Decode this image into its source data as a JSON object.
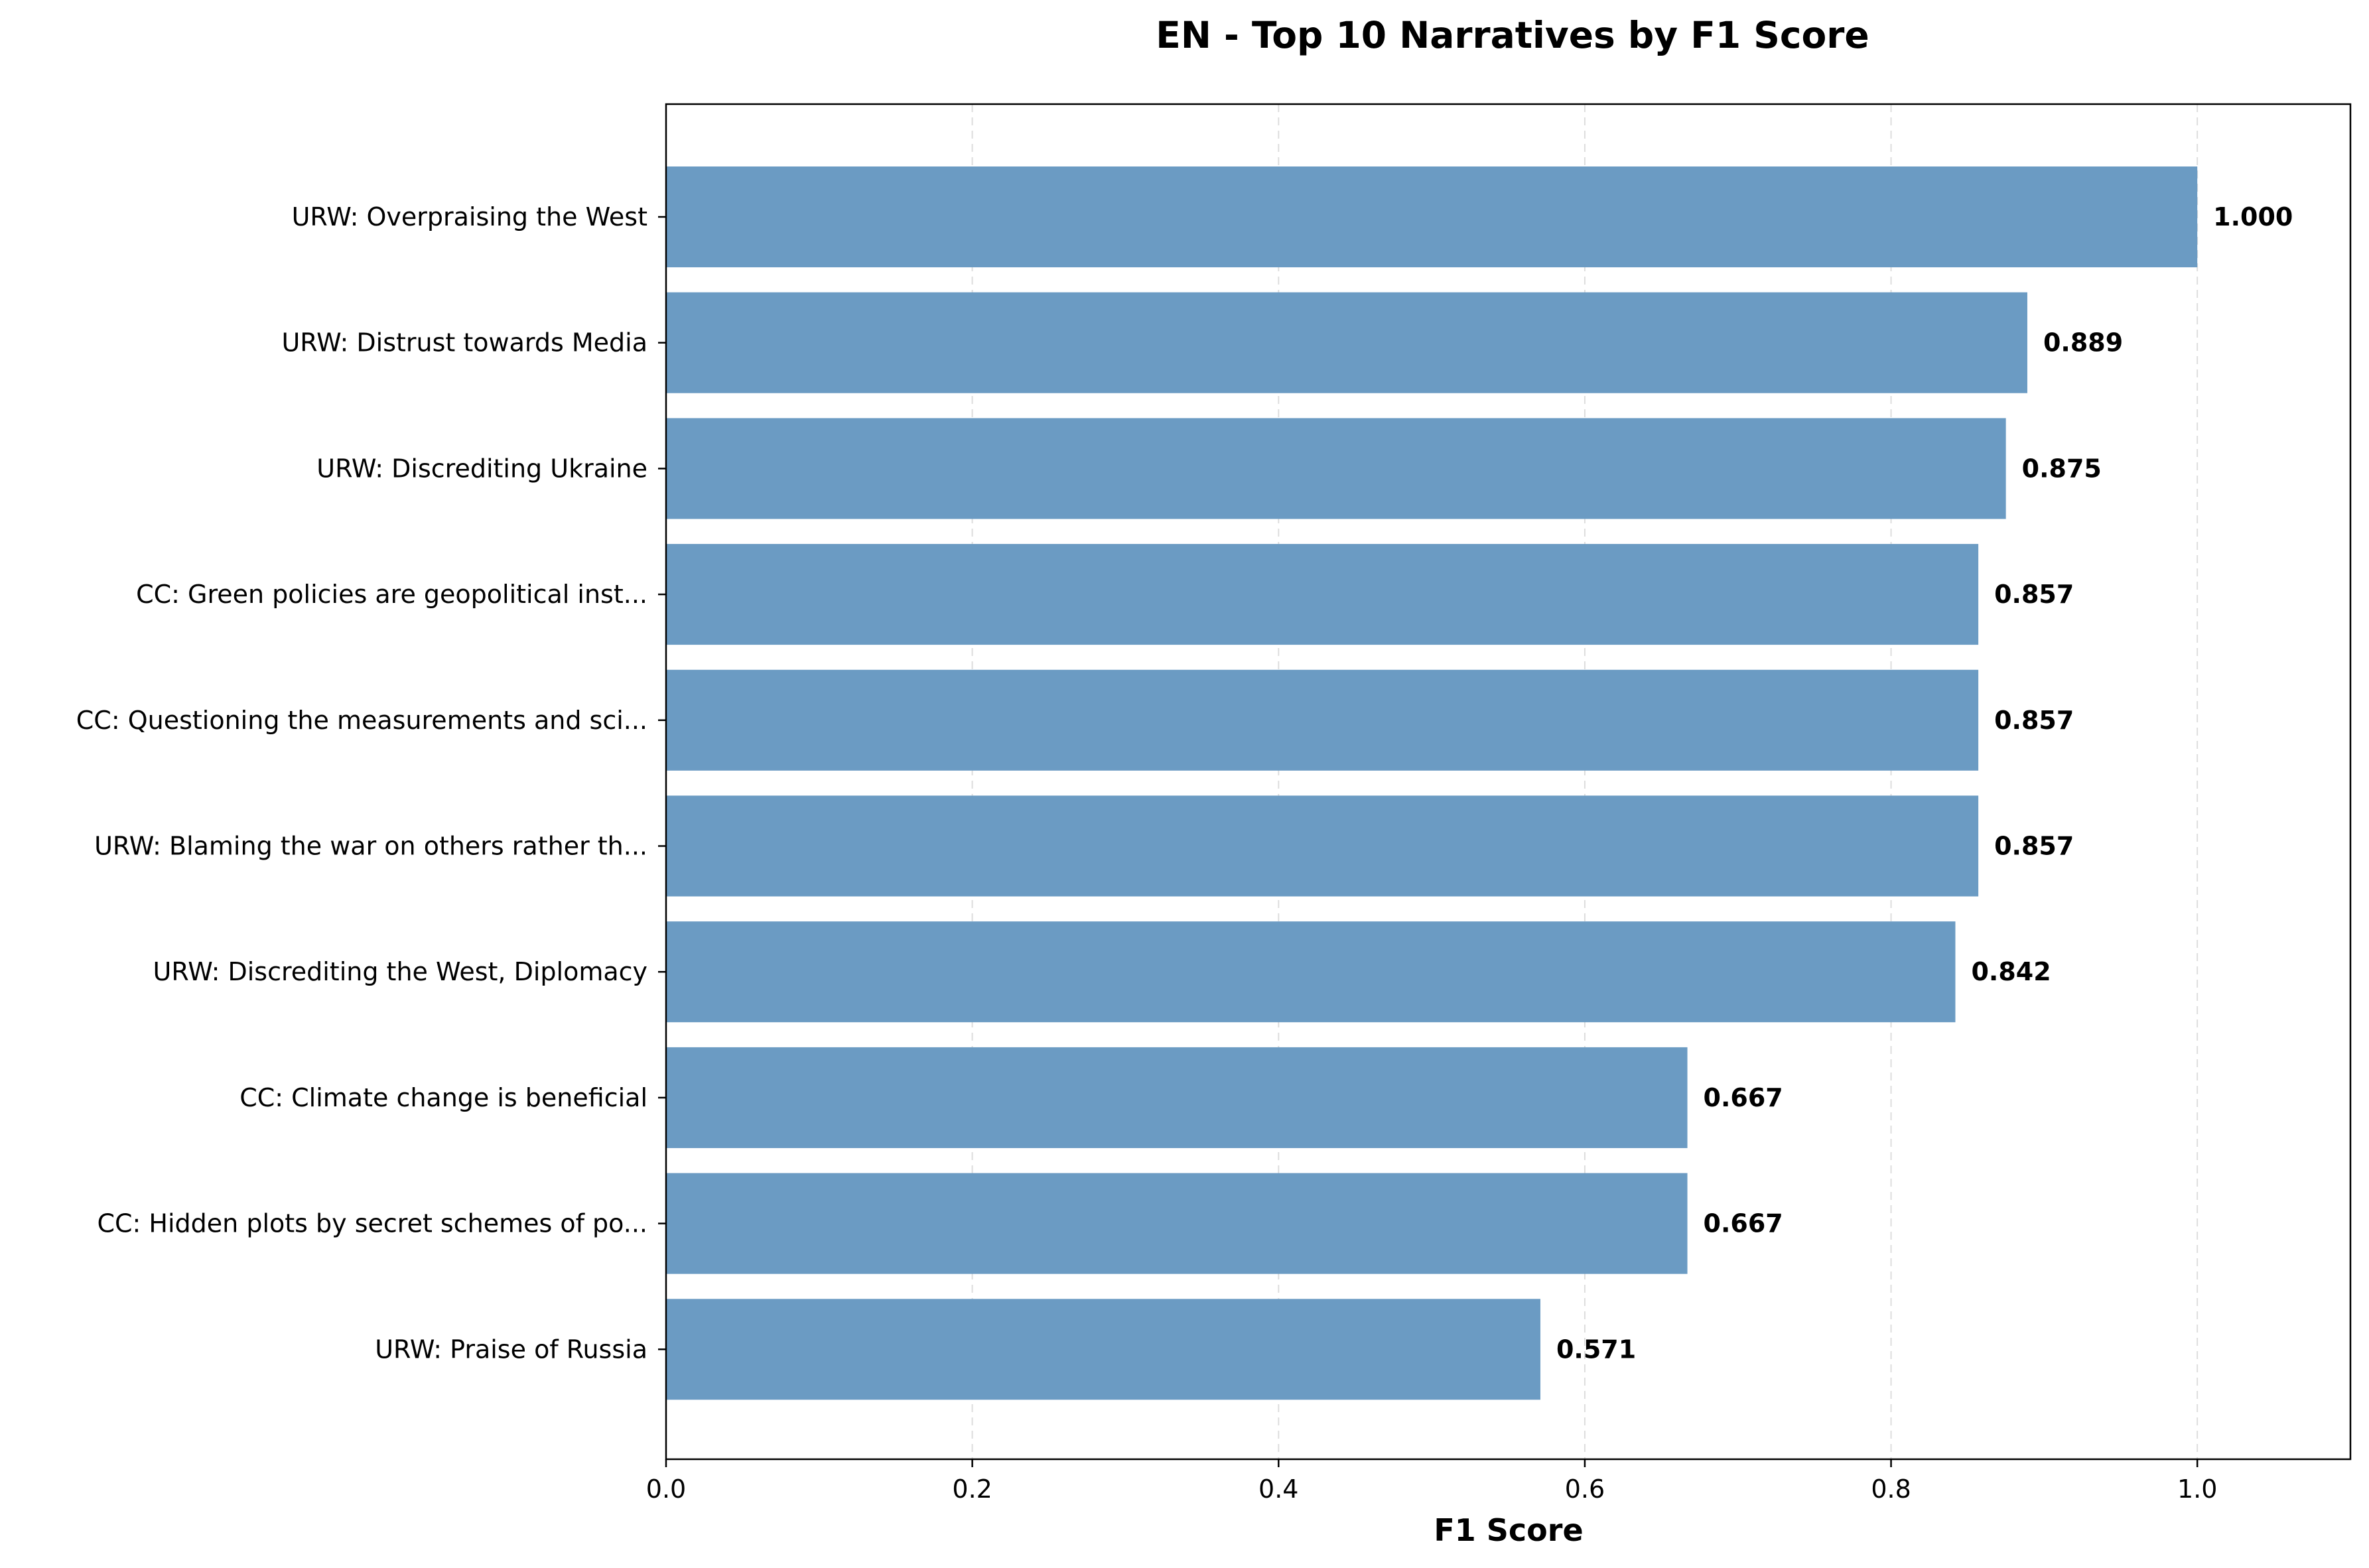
{
  "chart_data": {
    "type": "bar",
    "orientation": "horizontal",
    "title": "EN - Top 10 Narratives by F1 Score",
    "xlabel": "F1 Score",
    "ylabel": "",
    "categories": [
      "URW: Overpraising the West",
      "URW: Distrust towards Media",
      "URW: Discrediting Ukraine",
      "CC: Green policies are geopolitical inst...",
      "CC: Questioning the measurements and sci...",
      "URW: Blaming the war on others rather th...",
      "URW: Discrediting the West, Diplomacy",
      "CC: Climate change is beneficial",
      "CC: Hidden plots by secret schemes of po...",
      "URW: Praise of Russia"
    ],
    "values": [
      1.0,
      0.889,
      0.875,
      0.857,
      0.857,
      0.857,
      0.842,
      0.667,
      0.667,
      0.571
    ],
    "value_labels": [
      "1.000",
      "0.889",
      "0.875",
      "0.857",
      "0.857",
      "0.857",
      "0.842",
      "0.667",
      "0.667",
      "0.571"
    ],
    "xlim": [
      0,
      1.1
    ],
    "xticks": [
      0.0,
      0.2,
      0.4,
      0.6,
      0.8,
      1.0
    ],
    "xtick_labels": [
      "0.0",
      "0.2",
      "0.4",
      "0.6",
      "0.8",
      "1.0"
    ],
    "grid": "x-axis dashed",
    "bar_color": "#6b9bc3",
    "grid_color": "#dddddd"
  }
}
